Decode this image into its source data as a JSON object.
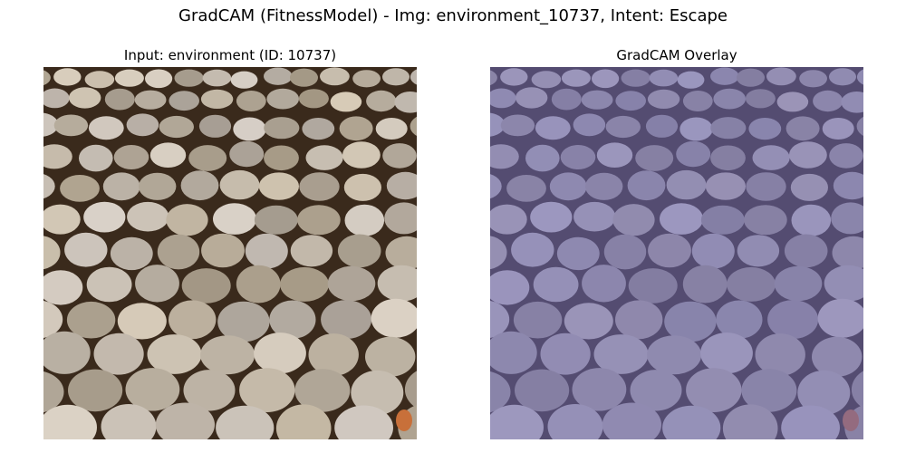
{
  "figure": {
    "title": "GradCAM (FitnessModel) - Img: environment_10737, Intent: Escape"
  },
  "panels": [
    {
      "title": "Input: environment (ID: 10737)",
      "image": "stacked round stone pavers, brown and grey tones"
    },
    {
      "title": "GradCAM Overlay",
      "image": "same pavers with uniform purple-blue heatmap tint"
    }
  ],
  "colors": {
    "background": "#ffffff",
    "stone_light": "#bdb2a6",
    "stone_mid": "#a89686",
    "gap_dark": "#3a2a1c",
    "overlay_tint": "#6a68b8"
  }
}
